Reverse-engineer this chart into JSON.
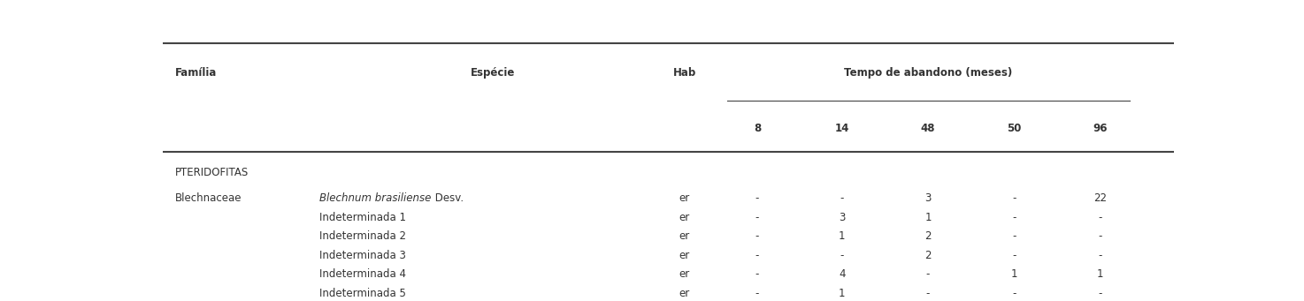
{
  "section_header": "PTERIDOFITAS",
  "rows": [
    {
      "familia": "Blechnaceae",
      "especie_italic": "Blechnum brasiliense",
      "especie_normal": " Desv.",
      "hab": "er",
      "values": [
        "-",
        "-",
        "3",
        "-",
        "22"
      ]
    },
    {
      "familia": "",
      "especie_italic": "",
      "especie_normal": "Indeterminada 1",
      "hab": "er",
      "values": [
        "-",
        "3",
        "1",
        "-",
        "-"
      ]
    },
    {
      "familia": "",
      "especie_italic": "",
      "especie_normal": "Indeterminada 2",
      "hab": "er",
      "values": [
        "-",
        "1",
        "2",
        "-",
        "-"
      ]
    },
    {
      "familia": "",
      "especie_italic": "",
      "especie_normal": "Indeterminada 3",
      "hab": "er",
      "values": [
        "-",
        "-",
        "2",
        "-",
        "-"
      ]
    },
    {
      "familia": "",
      "especie_italic": "",
      "especie_normal": "Indeterminada 4",
      "hab": "er",
      "values": [
        "-",
        "4",
        "-",
        "1",
        "1"
      ]
    },
    {
      "familia": "",
      "especie_italic": "",
      "especie_normal": "Indeterminada 5",
      "hab": "er",
      "values": [
        "-",
        "1",
        "-",
        "-",
        "-"
      ]
    }
  ],
  "col_familia": 0.012,
  "col_especie": 0.155,
  "col_hab": 0.498,
  "col_times": [
    0.588,
    0.672,
    0.757,
    0.842,
    0.927
  ],
  "time_labels": [
    "8",
    "14",
    "48",
    "50",
    "96"
  ],
  "bg_color": "#ffffff",
  "line_color": "#444444",
  "text_color": "#333333",
  "font_size": 8.5,
  "header_font_size": 8.5
}
